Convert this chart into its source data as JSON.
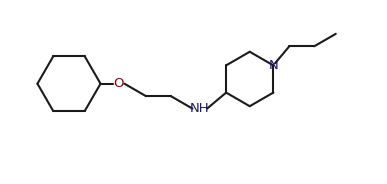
{
  "bg_color": "#ffffff",
  "line_color": "#1a1a1a",
  "N_color": "#1a1a6e",
  "O_color": "#8b0000",
  "line_width": 1.5,
  "font_size": 9.5,
  "figsize": [
    3.87,
    1.84
  ],
  "dpi": 100,
  "xlim": [
    0,
    10.5
  ],
  "ylim": [
    0,
    5.5
  ]
}
